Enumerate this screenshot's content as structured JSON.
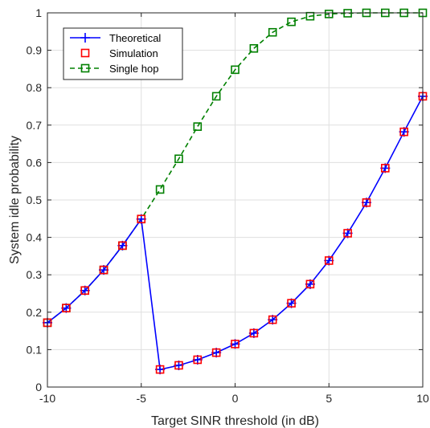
{
  "chart_data": {
    "type": "line",
    "xlabel": "Target SINR threshold (in dB)",
    "ylabel": "System idle probability",
    "xlim": [
      -10,
      10
    ],
    "ylim": [
      0,
      1
    ],
    "xticks": [
      -10,
      -5,
      0,
      5,
      10
    ],
    "yticks": [
      0,
      0.1,
      0.2,
      0.3,
      0.4,
      0.5,
      0.6,
      0.7,
      0.8,
      0.9,
      1
    ],
    "xtick_labels": [
      "-10",
      "-5",
      "0",
      "5",
      "10"
    ],
    "ytick_labels": [
      "0",
      "0.1",
      "0.2",
      "0.3",
      "0.4",
      "0.5",
      "0.6",
      "0.7",
      "0.8",
      "0.9",
      "1"
    ],
    "grid": true,
    "legend_position": "top-left",
    "x": [
      -10,
      -9,
      -8,
      -7,
      -6,
      -5,
      -4,
      -3,
      -2,
      -1,
      0,
      1,
      2,
      3,
      4,
      5,
      6,
      7,
      8,
      9,
      10
    ],
    "series": [
      {
        "name": "Theoretical",
        "color": "#0000ff",
        "line": "solid",
        "marker": "plus",
        "values": [
          0.172,
          0.211,
          0.258,
          0.313,
          0.378,
          0.449,
          0.047,
          0.058,
          0.073,
          0.092,
          0.115,
          0.144,
          0.18,
          0.224,
          0.275,
          0.338,
          0.411,
          0.493,
          0.585,
          0.682,
          0.777
        ]
      },
      {
        "name": "Simulation",
        "color": "#ff0000",
        "line": "none",
        "marker": "square",
        "values": [
          0.172,
          0.211,
          0.258,
          0.313,
          0.378,
          0.449,
          0.047,
          0.058,
          0.073,
          0.092,
          0.115,
          0.144,
          0.18,
          0.224,
          0.275,
          0.338,
          0.411,
          0.493,
          0.585,
          0.682,
          0.777
        ]
      },
      {
        "name": "Single hop",
        "color": "#008000",
        "line": "dashed",
        "marker": "square",
        "values": [
          0.172,
          0.211,
          0.258,
          0.313,
          0.378,
          0.449,
          0.528,
          0.61,
          0.696,
          0.777,
          0.848,
          0.905,
          0.948,
          0.976,
          0.991,
          0.997,
          0.999,
          1.0,
          1.0,
          1.0,
          1.0
        ]
      }
    ]
  }
}
